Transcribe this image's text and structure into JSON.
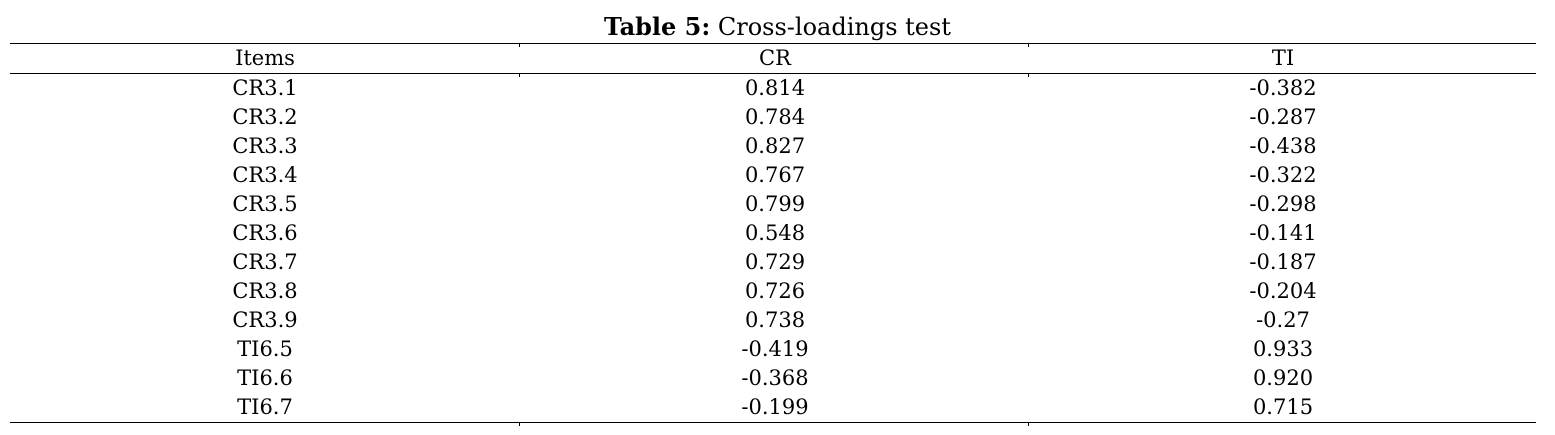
{
  "caption": {
    "label": "Table 5:",
    "title": "Cross-loadings test"
  },
  "table": {
    "headers": [
      "Items",
      "CR",
      "TI"
    ],
    "rows": [
      [
        "CR3.1",
        "0.814",
        "-0.382"
      ],
      [
        "CR3.2",
        "0.784",
        "-0.287"
      ],
      [
        "CR3.3",
        "0.827",
        "-0.438"
      ],
      [
        "CR3.4",
        "0.767",
        "-0.322"
      ],
      [
        "CR3.5",
        "0.799",
        "-0.298"
      ],
      [
        "CR3.6",
        "0.548",
        "-0.141"
      ],
      [
        "CR3.7",
        "0.729",
        "-0.187"
      ],
      [
        "CR3.8",
        "0.726",
        "-0.204"
      ],
      [
        "CR3.9",
        "0.738",
        "-0.27"
      ],
      [
        "TI6.5",
        "-0.419",
        "0.933"
      ],
      [
        "TI6.6",
        "-0.368",
        "0.920"
      ],
      [
        "TI6.7",
        "-0.199",
        "0.715"
      ]
    ]
  }
}
